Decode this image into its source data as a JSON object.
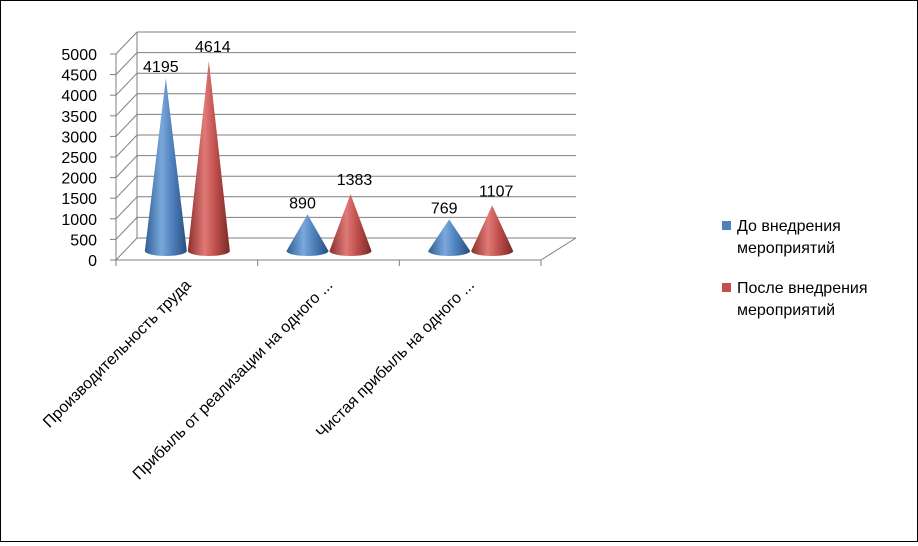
{
  "chart_data": {
    "type": "bar",
    "style": "3d-cone",
    "categories": [
      "Производительность труда",
      "Прибыль от реализации на одного ...",
      "Чистая прибыль на одного ..."
    ],
    "series": [
      {
        "name": "До внедрения мероприятий",
        "name_lines": [
          "До внедрения",
          "мероприятий"
        ],
        "color": "#4f81bd",
        "values": [
          4195,
          890,
          769
        ]
      },
      {
        "name": "После внедрения мероприятий",
        "name_lines": [
          "После внедрения",
          "мероприятий"
        ],
        "color": "#c0504d",
        "values": [
          4614,
          1383,
          1107
        ]
      }
    ],
    "y_ticks": [
      "0",
      "500",
      "1000",
      "1500",
      "2000",
      "2500",
      "3000",
      "3500",
      "4000",
      "4500",
      "5000"
    ],
    "ylim": [
      0,
      5000
    ],
    "grid": true,
    "legend_position": "right"
  }
}
